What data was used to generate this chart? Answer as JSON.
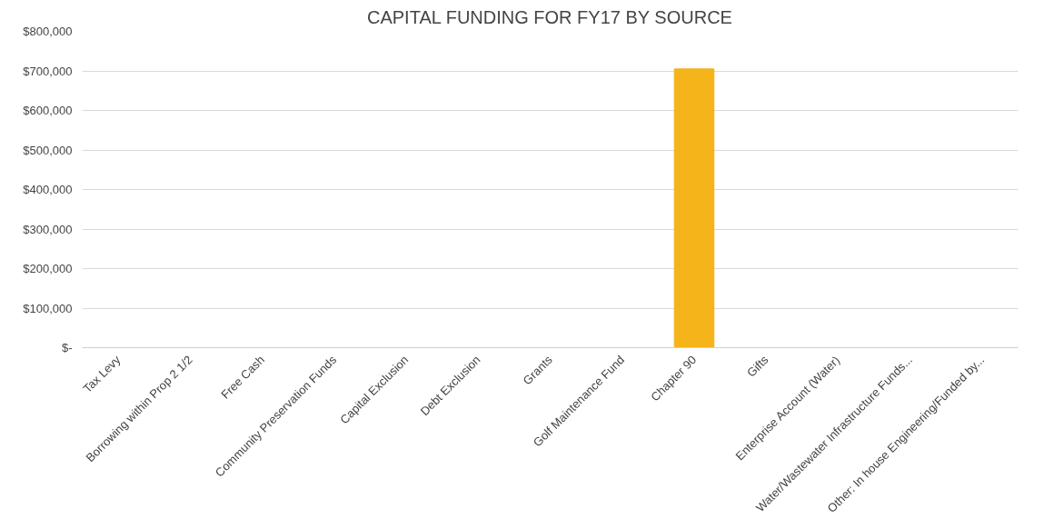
{
  "chart_data": {
    "type": "bar",
    "title": "CAPITAL FUNDING FOR FY17 BY SOURCE",
    "categories": [
      "Tax Levy",
      "Borrowing within Prop 2 1/2",
      "Free Cash",
      "Community Preservation Funds",
      "Capital Exclusion",
      "Debt Exclusion",
      "Grants",
      "Golf Maintenance Fund",
      "Chapter 90",
      "Gifts",
      "Enterprise Account (Water)",
      "Water/Wastewater Infrastructure Funds...",
      "Other: In house Engineering/Funded by..."
    ],
    "values": [
      0,
      0,
      0,
      0,
      0,
      0,
      0,
      0,
      705000,
      0,
      0,
      0,
      0
    ],
    "color": "#f4b41a",
    "ylim": [
      0,
      800000
    ],
    "yticks": [
      {
        "value": 0,
        "label": "$-"
      },
      {
        "value": 100000,
        "label": "$100,000"
      },
      {
        "value": 200000,
        "label": "$200,000"
      },
      {
        "value": 300000,
        "label": "$300,000"
      },
      {
        "value": 400000,
        "label": "$400,000"
      },
      {
        "value": 500000,
        "label": "$500,000"
      },
      {
        "value": 600000,
        "label": "$600,000"
      },
      {
        "value": 700000,
        "label": "$700,000"
      },
      {
        "value": 800000,
        "label": "$800,000"
      }
    ],
    "grid": "y"
  }
}
